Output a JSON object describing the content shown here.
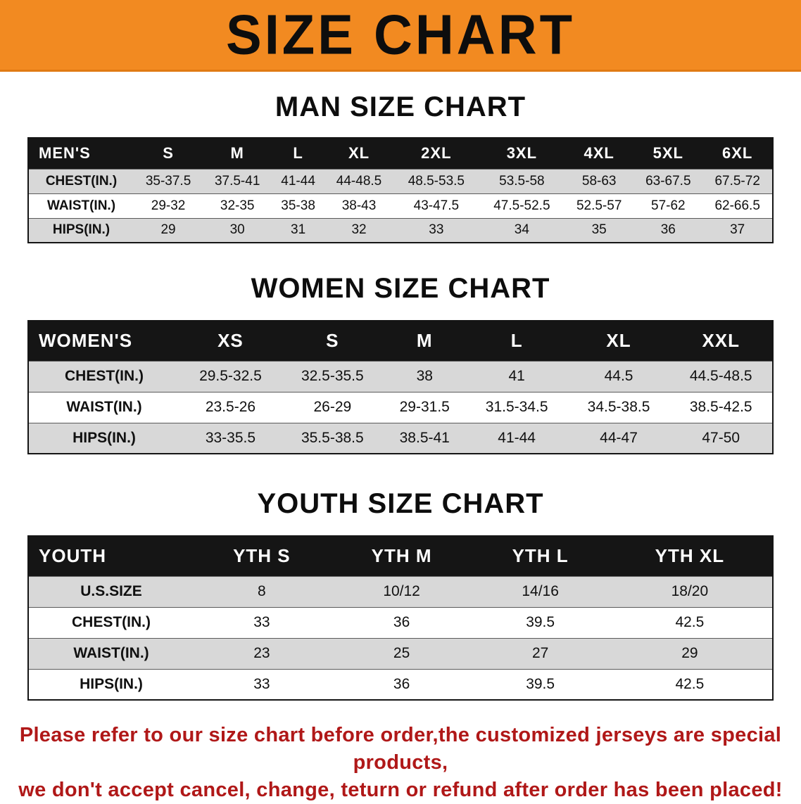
{
  "banner": {
    "title": "SIZE CHART"
  },
  "colors": {
    "banner_orange": "#F28A21",
    "header_black": "#151515",
    "row_gray": "#D8D8D8",
    "disclaimer_red": "#B01818"
  },
  "men": {
    "heading": "MAN SIZE CHART",
    "table": {
      "header": [
        "MEN'S",
        "S",
        "M",
        "L",
        "XL",
        "2XL",
        "3XL",
        "4XL",
        "5XL",
        "6XL"
      ],
      "rows": [
        [
          "CHEST(IN.)",
          "35-37.5",
          "37.5-41",
          "41-44",
          "44-48.5",
          "48.5-53.5",
          "53.5-58",
          "58-63",
          "63-67.5",
          "67.5-72"
        ],
        [
          "WAIST(IN.)",
          "29-32",
          "32-35",
          "35-38",
          "38-43",
          "43-47.5",
          "47.5-52.5",
          "52.5-57",
          "57-62",
          "62-66.5"
        ],
        [
          "HIPS(IN.)",
          "29",
          "30",
          "31",
          "32",
          "33",
          "34",
          "35",
          "36",
          "37"
        ]
      ]
    }
  },
  "women": {
    "heading": "WOMEN SIZE CHART",
    "table": {
      "header": [
        "WOMEN'S",
        "XS",
        "S",
        "M",
        "L",
        "XL",
        "XXL"
      ],
      "rows": [
        [
          "CHEST(IN.)",
          "29.5-32.5",
          "32.5-35.5",
          "38",
          "41",
          "44.5",
          "44.5-48.5"
        ],
        [
          "WAIST(IN.)",
          "23.5-26",
          "26-29",
          "29-31.5",
          "31.5-34.5",
          "34.5-38.5",
          "38.5-42.5"
        ],
        [
          "HIPS(IN.)",
          "33-35.5",
          "35.5-38.5",
          "38.5-41",
          "41-44",
          "44-47",
          "47-50"
        ]
      ]
    }
  },
  "youth": {
    "heading": "YOUTH SIZE CHART",
    "table": {
      "header": [
        "YOUTH",
        "YTH S",
        "YTH M",
        "YTH L",
        "YTH XL"
      ],
      "rows": [
        [
          "U.S.SIZE",
          "8",
          "10/12",
          "14/16",
          "18/20"
        ],
        [
          "CHEST(IN.)",
          "33",
          "36",
          "39.5",
          "42.5"
        ],
        [
          "WAIST(IN.)",
          "23",
          "25",
          "27",
          "29"
        ],
        [
          "HIPS(IN.)",
          "33",
          "36",
          "39.5",
          "42.5"
        ]
      ]
    }
  },
  "disclaimer": {
    "line1": "Please refer to our size chart before order,the customized jerseys are special products,",
    "line2": "we don't accept cancel, change, teturn or refund after order has been placed!"
  }
}
